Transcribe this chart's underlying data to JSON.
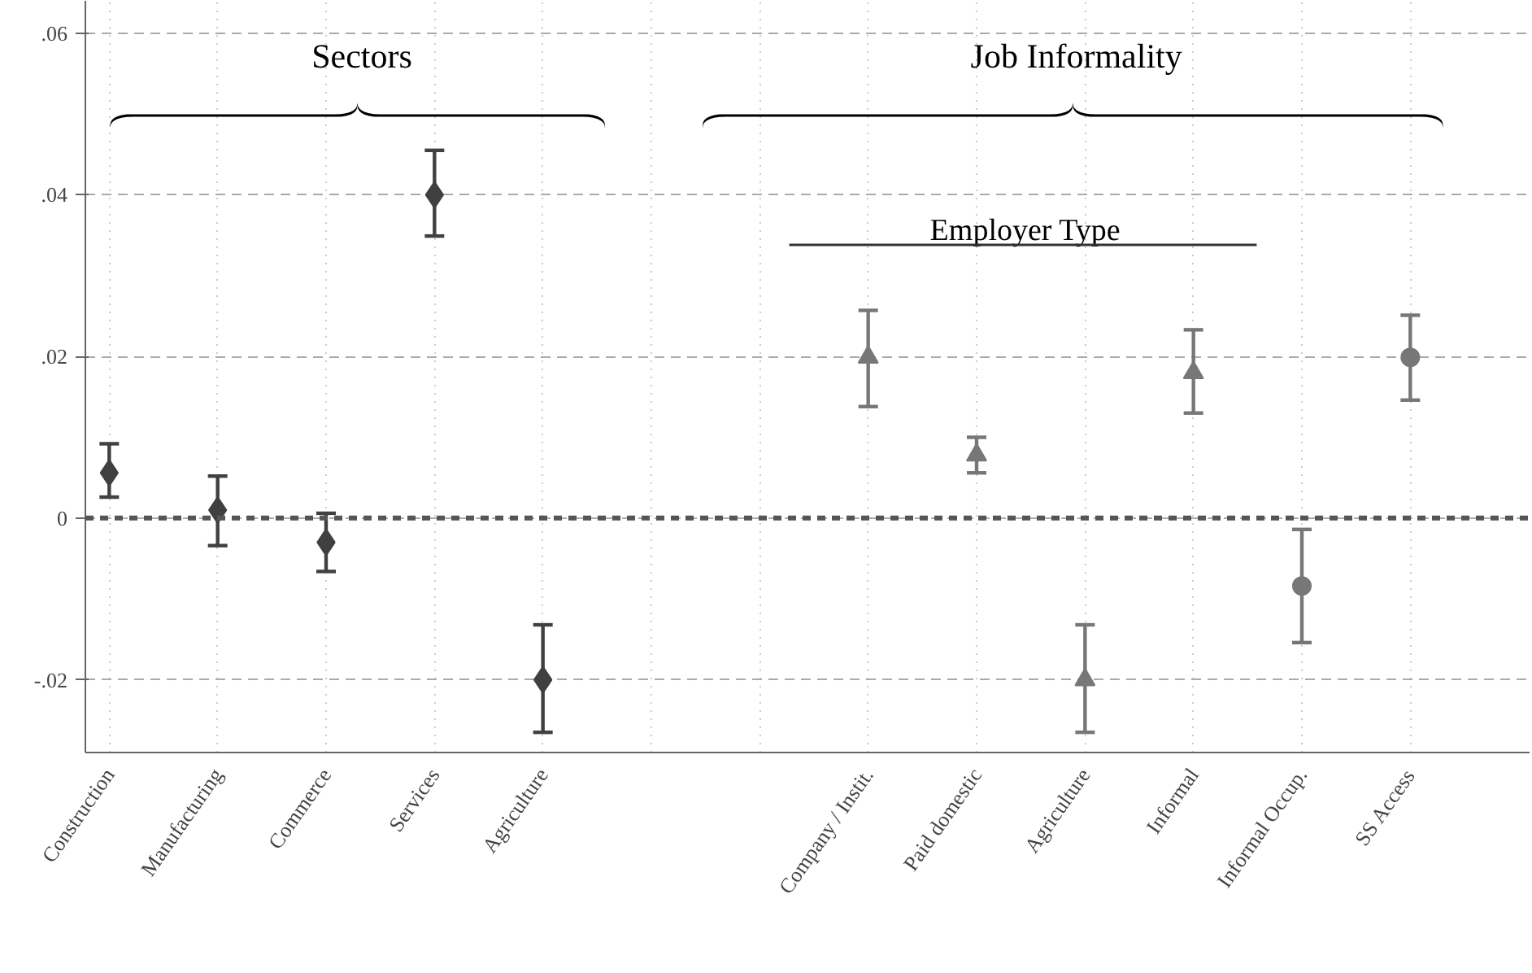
{
  "chart_data": {
    "type": "scatter",
    "categories": [
      "Construction",
      "Manufacturing",
      "Commerce",
      "Services",
      "Agriculture",
      null,
      null,
      "Company / Instit.",
      "Paid domestic",
      "Agriculture",
      "Informal",
      "Informal Occup.",
      "SS Access"
    ],
    "series": [
      {
        "color": "#404040",
        "marker": "diamond",
        "values": [
          0.0056,
          0.001,
          -0.003,
          0.04,
          -0.02,
          null,
          null,
          null,
          null,
          null,
          null,
          null,
          null
        ],
        "errors": [
          [
            0.0026,
            0.0092
          ],
          [
            -0.0034,
            0.0052
          ],
          [
            -0.0066,
            0.0006
          ],
          [
            0.0349,
            0.0455
          ],
          [
            -0.0265,
            -0.0132
          ],
          null,
          null,
          null,
          null,
          null,
          null,
          null,
          null
        ]
      },
      {
        "color": "#777777",
        "marker": "triangle",
        "values": [
          null,
          null,
          null,
          null,
          null,
          null,
          null,
          0.0199,
          0.0078,
          -0.02,
          0.018,
          null,
          null
        ],
        "errors": [
          null,
          null,
          null,
          null,
          null,
          null,
          null,
          [
            0.0138,
            0.0257
          ],
          [
            0.0056,
            0.01
          ],
          [
            -0.0265,
            -0.0132
          ],
          [
            0.013,
            0.0233
          ],
          null,
          null
        ]
      },
      {
        "color": "#777777",
        "marker": "circle",
        "values": [
          null,
          null,
          null,
          null,
          null,
          null,
          null,
          null,
          null,
          null,
          null,
          -0.0084,
          0.0199
        ],
        "errors": [
          null,
          null,
          null,
          null,
          null,
          null,
          null,
          null,
          null,
          null,
          null,
          [
            -0.0154,
            -0.0014
          ],
          [
            0.0146,
            0.0251
          ]
        ]
      }
    ],
    "ylim": [
      -0.029,
      0.064
    ],
    "yticks": [
      {
        "value": -0.02,
        "label": "-.02"
      },
      {
        "value": 0,
        "label": "0"
      },
      {
        "value": 0.02,
        "label": ".02"
      },
      {
        "value": 0.04,
        "label": ".04"
      },
      {
        "value": 0.06,
        "label": ".06"
      }
    ],
    "grid": true,
    "ref_lines": [
      {
        "axis": "y",
        "value": 0,
        "color": "#555555",
        "line_style": "dashed"
      }
    ],
    "annotations": [
      "Sectors",
      "Job Informality",
      "Employer Type"
    ]
  }
}
